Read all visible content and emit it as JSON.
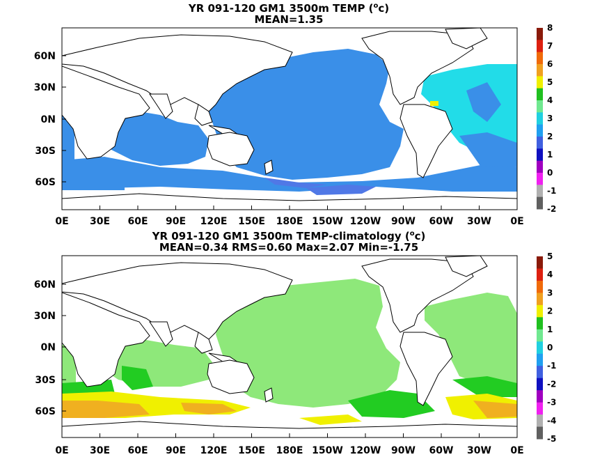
{
  "top": {
    "title_main": "YR 091-120 GM1 3500m TEMP (",
    "title_unit": "o",
    "title_end": "c)",
    "subtitle": "MEAN=1.35",
    "colorbar": [
      "8",
      "7",
      "6",
      "5",
      "4",
      "3",
      "2",
      "1",
      "0",
      "-1",
      "-2"
    ],
    "colorbar_colors": [
      "#8a1a0a",
      "#dd2010",
      "#f06a0a",
      "#f0a020",
      "#f0f000",
      "#20c020",
      "#70e890",
      "#20d0e0",
      "#20a0f0",
      "#4060e0",
      "#1010c0",
      "#a000c0",
      "#f020f0",
      "#b0b0b0",
      "#606060"
    ]
  },
  "bottom": {
    "title_main": "YR 091-120 GM1 3500m TEMP-climatology (",
    "title_unit": "o",
    "title_end": "c)",
    "subtitle": "MEAN=0.34   RMS=0.60   Max=2.07   Min=-1.75",
    "colorbar": [
      "5",
      "4",
      "3",
      "2",
      "1",
      "0",
      "-1",
      "-2",
      "-3",
      "-4",
      "-5"
    ],
    "colorbar_colors": [
      "#8a1a0a",
      "#dd2010",
      "#f06a0a",
      "#f0a020",
      "#f0f000",
      "#20c020",
      "#70e890",
      "#20d0e0",
      "#20a0f0",
      "#4060e0",
      "#1010c0",
      "#a000c0",
      "#f020f0",
      "#b0b0b0",
      "#606060"
    ]
  },
  "lat_labels": [
    "60N",
    "30N",
    "0N",
    "30S",
    "60S"
  ],
  "lon_labels": [
    "0E",
    "30E",
    "60E",
    "90E",
    "120E",
    "150E",
    "180E",
    "150W",
    "120W",
    "90W",
    "60W",
    "30W",
    "0E"
  ]
}
